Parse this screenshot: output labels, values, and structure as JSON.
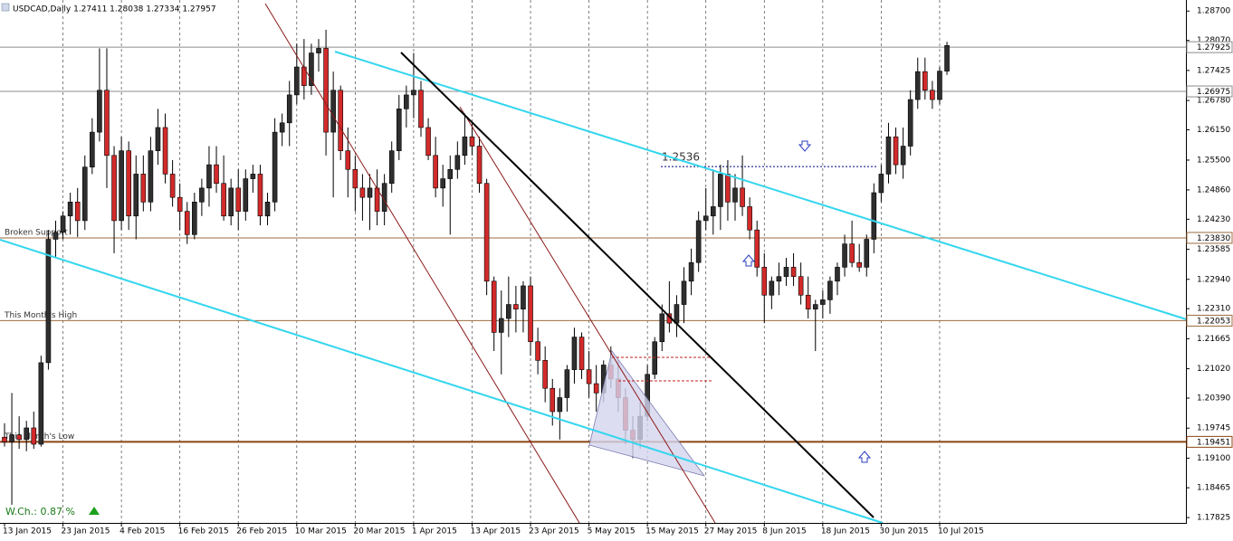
{
  "chart_data": {
    "type": "candlestick",
    "title": "USDCAD,Daily  1.27411 1.28038 1.27334 1.27957",
    "up_color": "#2f2f2f",
    "down_color": "#d32a2a",
    "grid": true,
    "ylim": [
      1.1771,
      1.2886
    ],
    "yticks": [
      {
        "value": 1.287,
        "label": "1.28700"
      },
      {
        "value": 1.2807,
        "label": "1.28070"
      },
      {
        "value": 1.27425,
        "label": "1.27425"
      },
      {
        "value": 1.2678,
        "label": "1.26780"
      },
      {
        "value": 1.2615,
        "label": "1.26150"
      },
      {
        "value": 1.255,
        "label": "1.25500"
      },
      {
        "value": 1.2486,
        "label": "1.24860"
      },
      {
        "value": 1.2423,
        "label": "1.24230"
      },
      {
        "value": 1.23585,
        "label": "1.23585"
      },
      {
        "value": 1.2294,
        "label": "1.22940"
      },
      {
        "value": 1.2231,
        "label": "1.22310"
      },
      {
        "value": 1.21665,
        "label": "1.21665"
      },
      {
        "value": 1.2102,
        "label": "1.21020"
      },
      {
        "value": 1.2039,
        "label": "1.20390"
      },
      {
        "value": 1.19745,
        "label": "1.19745"
      },
      {
        "value": 1.191,
        "label": "1.19100"
      },
      {
        "value": 1.18465,
        "label": "1.18465"
      },
      {
        "value": 1.17825,
        "label": "1.17825"
      }
    ],
    "xticks": [
      {
        "value": 0,
        "label": "13 Jan 2015"
      },
      {
        "value": 8,
        "label": "23 Jan 2015"
      },
      {
        "value": 16,
        "label": "4 Feb 2015"
      },
      {
        "value": 24,
        "label": "16 Feb 2015"
      },
      {
        "value": 32,
        "label": "26 Feb 2015"
      },
      {
        "value": 40,
        "label": "10 Mar 2015"
      },
      {
        "value": 48,
        "label": "20 Mar 2015"
      },
      {
        "value": 56,
        "label": "1 Apr 2015"
      },
      {
        "value": 64,
        "label": "13 Apr 2015"
      },
      {
        "value": 72,
        "label": "23 Apr 2015"
      },
      {
        "value": 80,
        "label": "5 May 2015"
      },
      {
        "value": 88,
        "label": "15 May 2015"
      },
      {
        "value": 96,
        "label": "27 May 2015"
      },
      {
        "value": 104,
        "label": "8 Jun 2015"
      },
      {
        "value": 112,
        "label": "18 Jun 2015"
      },
      {
        "value": 120,
        "label": "30 Jun 2015"
      },
      {
        "value": 128,
        "label": "10 Jul 2015"
      }
    ],
    "levels": [
      {
        "value": 1.27925,
        "label": "1.27925",
        "color": "#8c8c8c"
      },
      {
        "value": 1.26975,
        "label": "1.26975",
        "color": "#8c8c8c"
      },
      {
        "value": 1.2383,
        "label": "1.23830",
        "color": "#9c6b3f",
        "text": "Broken Support"
      },
      {
        "value": 1.22053,
        "label": "1.22053",
        "color": "#9c6b3f",
        "text": "This Month's High"
      },
      {
        "value": 1.19451,
        "label": "1.19451",
        "color": "#8b4513",
        "text": "This Month's Low"
      }
    ],
    "annotation": 1.2536,
    "weekly_change": "W.Ch.: 0.87 %",
    "candles": [
      [
        1.1955,
        1.1985,
        1.1935,
        1.1945
      ],
      [
        1.1945,
        1.205,
        1.181,
        1.196
      ],
      [
        1.196,
        1.2,
        1.193,
        1.195
      ],
      [
        1.195,
        1.199,
        1.1925,
        1.1975
      ],
      [
        1.1975,
        1.201,
        1.193,
        1.194
      ],
      [
        1.194,
        1.213,
        1.1935,
        1.2115
      ],
      [
        1.2115,
        1.24,
        1.21,
        1.238
      ],
      [
        1.238,
        1.242,
        1.234,
        1.2395
      ],
      [
        1.2395,
        1.244,
        1.238,
        1.243
      ],
      [
        1.243,
        1.248,
        1.239,
        1.246
      ],
      [
        1.246,
        1.249,
        1.2385,
        1.242
      ],
      [
        1.242,
        1.256,
        1.24,
        1.2535
      ],
      [
        1.2535,
        1.264,
        1.252,
        1.261
      ],
      [
        1.261,
        1.279,
        1.259,
        1.27
      ],
      [
        1.27,
        1.279,
        1.249,
        1.256
      ],
      [
        1.256,
        1.258,
        1.235,
        1.242
      ],
      [
        1.242,
        1.26,
        1.24,
        1.257
      ],
      [
        1.257,
        1.259,
        1.24,
        1.243
      ],
      [
        1.243,
        1.256,
        1.238,
        1.252
      ],
      [
        1.252,
        1.256,
        1.244,
        1.246
      ],
      [
        1.246,
        1.26,
        1.244,
        1.257
      ],
      [
        1.257,
        1.266,
        1.254,
        1.262
      ],
      [
        1.262,
        1.265,
        1.25,
        1.252
      ],
      [
        1.252,
        1.255,
        1.245,
        1.247
      ],
      [
        1.247,
        1.25,
        1.24,
        1.244
      ],
      [
        1.244,
        1.246,
        1.237,
        1.239
      ],
      [
        1.239,
        1.248,
        1.238,
        1.246
      ],
      [
        1.246,
        1.251,
        1.243,
        1.249
      ],
      [
        1.249,
        1.258,
        1.245,
        1.254
      ],
      [
        1.254,
        1.258,
        1.248,
        1.25
      ],
      [
        1.25,
        1.256,
        1.242,
        1.243
      ],
      [
        1.243,
        1.251,
        1.241,
        1.249
      ],
      [
        1.249,
        1.253,
        1.24,
        1.244
      ],
      [
        1.244,
        1.253,
        1.242,
        1.251
      ],
      [
        1.251,
        1.254,
        1.248,
        1.252
      ],
      [
        1.252,
        1.254,
        1.241,
        1.243
      ],
      [
        1.243,
        1.248,
        1.241,
        1.246
      ],
      [
        1.246,
        1.264,
        1.244,
        1.261
      ],
      [
        1.261,
        1.265,
        1.258,
        1.263
      ],
      [
        1.263,
        1.272,
        1.258,
        1.269
      ],
      [
        1.269,
        1.28,
        1.267,
        1.275
      ],
      [
        1.275,
        1.281,
        1.268,
        1.271
      ],
      [
        1.271,
        1.28,
        1.269,
        1.278
      ],
      [
        1.278,
        1.281,
        1.274,
        1.279
      ],
      [
        1.279,
        1.283,
        1.256,
        1.261
      ],
      [
        1.261,
        1.274,
        1.247,
        1.27
      ],
      [
        1.27,
        1.271,
        1.255,
        1.257
      ],
      [
        1.257,
        1.262,
        1.247,
        1.253
      ],
      [
        1.253,
        1.256,
        1.244,
        1.249
      ],
      [
        1.249,
        1.252,
        1.242,
        1.247
      ],
      [
        1.247,
        1.252,
        1.24,
        1.249
      ],
      [
        1.249,
        1.253,
        1.241,
        1.244
      ],
      [
        1.244,
        1.252,
        1.241,
        1.25
      ],
      [
        1.25,
        1.259,
        1.248,
        1.257
      ],
      [
        1.257,
        1.269,
        1.255,
        1.266
      ],
      [
        1.266,
        1.271,
        1.262,
        1.269
      ],
      [
        1.269,
        1.278,
        1.264,
        1.27
      ],
      [
        1.27,
        1.272,
        1.26,
        1.262
      ],
      [
        1.262,
        1.264,
        1.255,
        1.256
      ],
      [
        1.256,
        1.26,
        1.247,
        1.249
      ],
      [
        1.249,
        1.254,
        1.245,
        1.251
      ],
      [
        1.251,
        1.256,
        1.239,
        1.253
      ],
      [
        1.253,
        1.259,
        1.251,
        1.256
      ],
      [
        1.256,
        1.265,
        1.254,
        1.26
      ],
      [
        1.26,
        1.263,
        1.256,
        1.258
      ],
      [
        1.258,
        1.26,
        1.248,
        1.25
      ],
      [
        1.25,
        1.251,
        1.226,
        1.229
      ],
      [
        1.229,
        1.23,
        1.214,
        1.218
      ],
      [
        1.218,
        1.227,
        1.209,
        1.221
      ],
      [
        1.221,
        1.23,
        1.217,
        1.224
      ],
      [
        1.224,
        1.228,
        1.218,
        1.223
      ],
      [
        1.223,
        1.229,
        1.218,
        1.228
      ],
      [
        1.228,
        1.23,
        1.213,
        1.216
      ],
      [
        1.216,
        1.219,
        1.209,
        1.212
      ],
      [
        1.212,
        1.215,
        1.203,
        1.206
      ],
      [
        1.206,
        1.208,
        1.198,
        1.201
      ],
      [
        1.201,
        1.206,
        1.195,
        1.204
      ],
      [
        1.204,
        1.211,
        1.201,
        1.21
      ],
      [
        1.21,
        1.219,
        1.207,
        1.217
      ],
      [
        1.217,
        1.218,
        1.208,
        1.21
      ],
      [
        1.21,
        1.214,
        1.204,
        1.207
      ],
      [
        1.207,
        1.211,
        1.201,
        1.205
      ],
      [
        1.205,
        1.212,
        1.203,
        1.211
      ],
      [
        1.211,
        1.215,
        1.206,
        1.208
      ],
      [
        1.208,
        1.212,
        1.201,
        1.204
      ],
      [
        1.204,
        1.206,
        1.194,
        1.197
      ],
      [
        1.197,
        1.2,
        1.191,
        1.195
      ],
      [
        1.195,
        1.203,
        1.193,
        1.2
      ],
      [
        1.2,
        1.211,
        1.199,
        1.209
      ],
      [
        1.209,
        1.217,
        1.208,
        1.216
      ],
      [
        1.216,
        1.224,
        1.214,
        1.222
      ],
      [
        1.222,
        1.229,
        1.218,
        1.22
      ],
      [
        1.22,
        1.226,
        1.217,
        1.224
      ],
      [
        1.224,
        1.232,
        1.22,
        1.229
      ],
      [
        1.229,
        1.236,
        1.226,
        1.233
      ],
      [
        1.233,
        1.244,
        1.231,
        1.242
      ],
      [
        1.242,
        1.249,
        1.24,
        1.243
      ],
      [
        1.243,
        1.253,
        1.239,
        1.245
      ],
      [
        1.245,
        1.254,
        1.24,
        1.252
      ],
      [
        1.252,
        1.255,
        1.242,
        1.246
      ],
      [
        1.246,
        1.252,
        1.242,
        1.249
      ],
      [
        1.249,
        1.256,
        1.243,
        1.245
      ],
      [
        1.245,
        1.247,
        1.238,
        1.24
      ],
      [
        1.24,
        1.242,
        1.23,
        1.232
      ],
      [
        1.232,
        1.235,
        1.22,
        1.226
      ],
      [
        1.226,
        1.23,
        1.223,
        1.229
      ],
      [
        1.229,
        1.233,
        1.226,
        1.23
      ],
      [
        1.23,
        1.234,
        1.228,
        1.232
      ],
      [
        1.232,
        1.235,
        1.228,
        1.23
      ],
      [
        1.23,
        1.233,
        1.224,
        1.226
      ],
      [
        1.226,
        1.23,
        1.221,
        1.223
      ],
      [
        1.223,
        1.225,
        1.214,
        1.224
      ],
      [
        1.224,
        1.227,
        1.221,
        1.225
      ],
      [
        1.225,
        1.23,
        1.222,
        1.229
      ],
      [
        1.229,
        1.233,
        1.226,
        1.232
      ],
      [
        1.232,
        1.239,
        1.23,
        1.237
      ],
      [
        1.237,
        1.242,
        1.232,
        1.233
      ],
      [
        1.233,
        1.237,
        1.231,
        1.232
      ],
      [
        1.232,
        1.239,
        1.23,
        1.238
      ],
      [
        1.238,
        1.25,
        1.235,
        1.248
      ],
      [
        1.248,
        1.254,
        1.246,
        1.252
      ],
      [
        1.252,
        1.263,
        1.25,
        1.26
      ],
      [
        1.26,
        1.262,
        1.252,
        1.254
      ],
      [
        1.254,
        1.262,
        1.251,
        1.258
      ],
      [
        1.258,
        1.27,
        1.256,
        1.268
      ],
      [
        1.268,
        1.277,
        1.266,
        1.274
      ],
      [
        1.274,
        1.277,
        1.268,
        1.27
      ],
      [
        1.27,
        1.272,
        1.266,
        1.268
      ],
      [
        1.268,
        1.275,
        1.267,
        1.2741
      ],
      [
        1.2741,
        1.2804,
        1.2733,
        1.2796
      ]
    ]
  }
}
